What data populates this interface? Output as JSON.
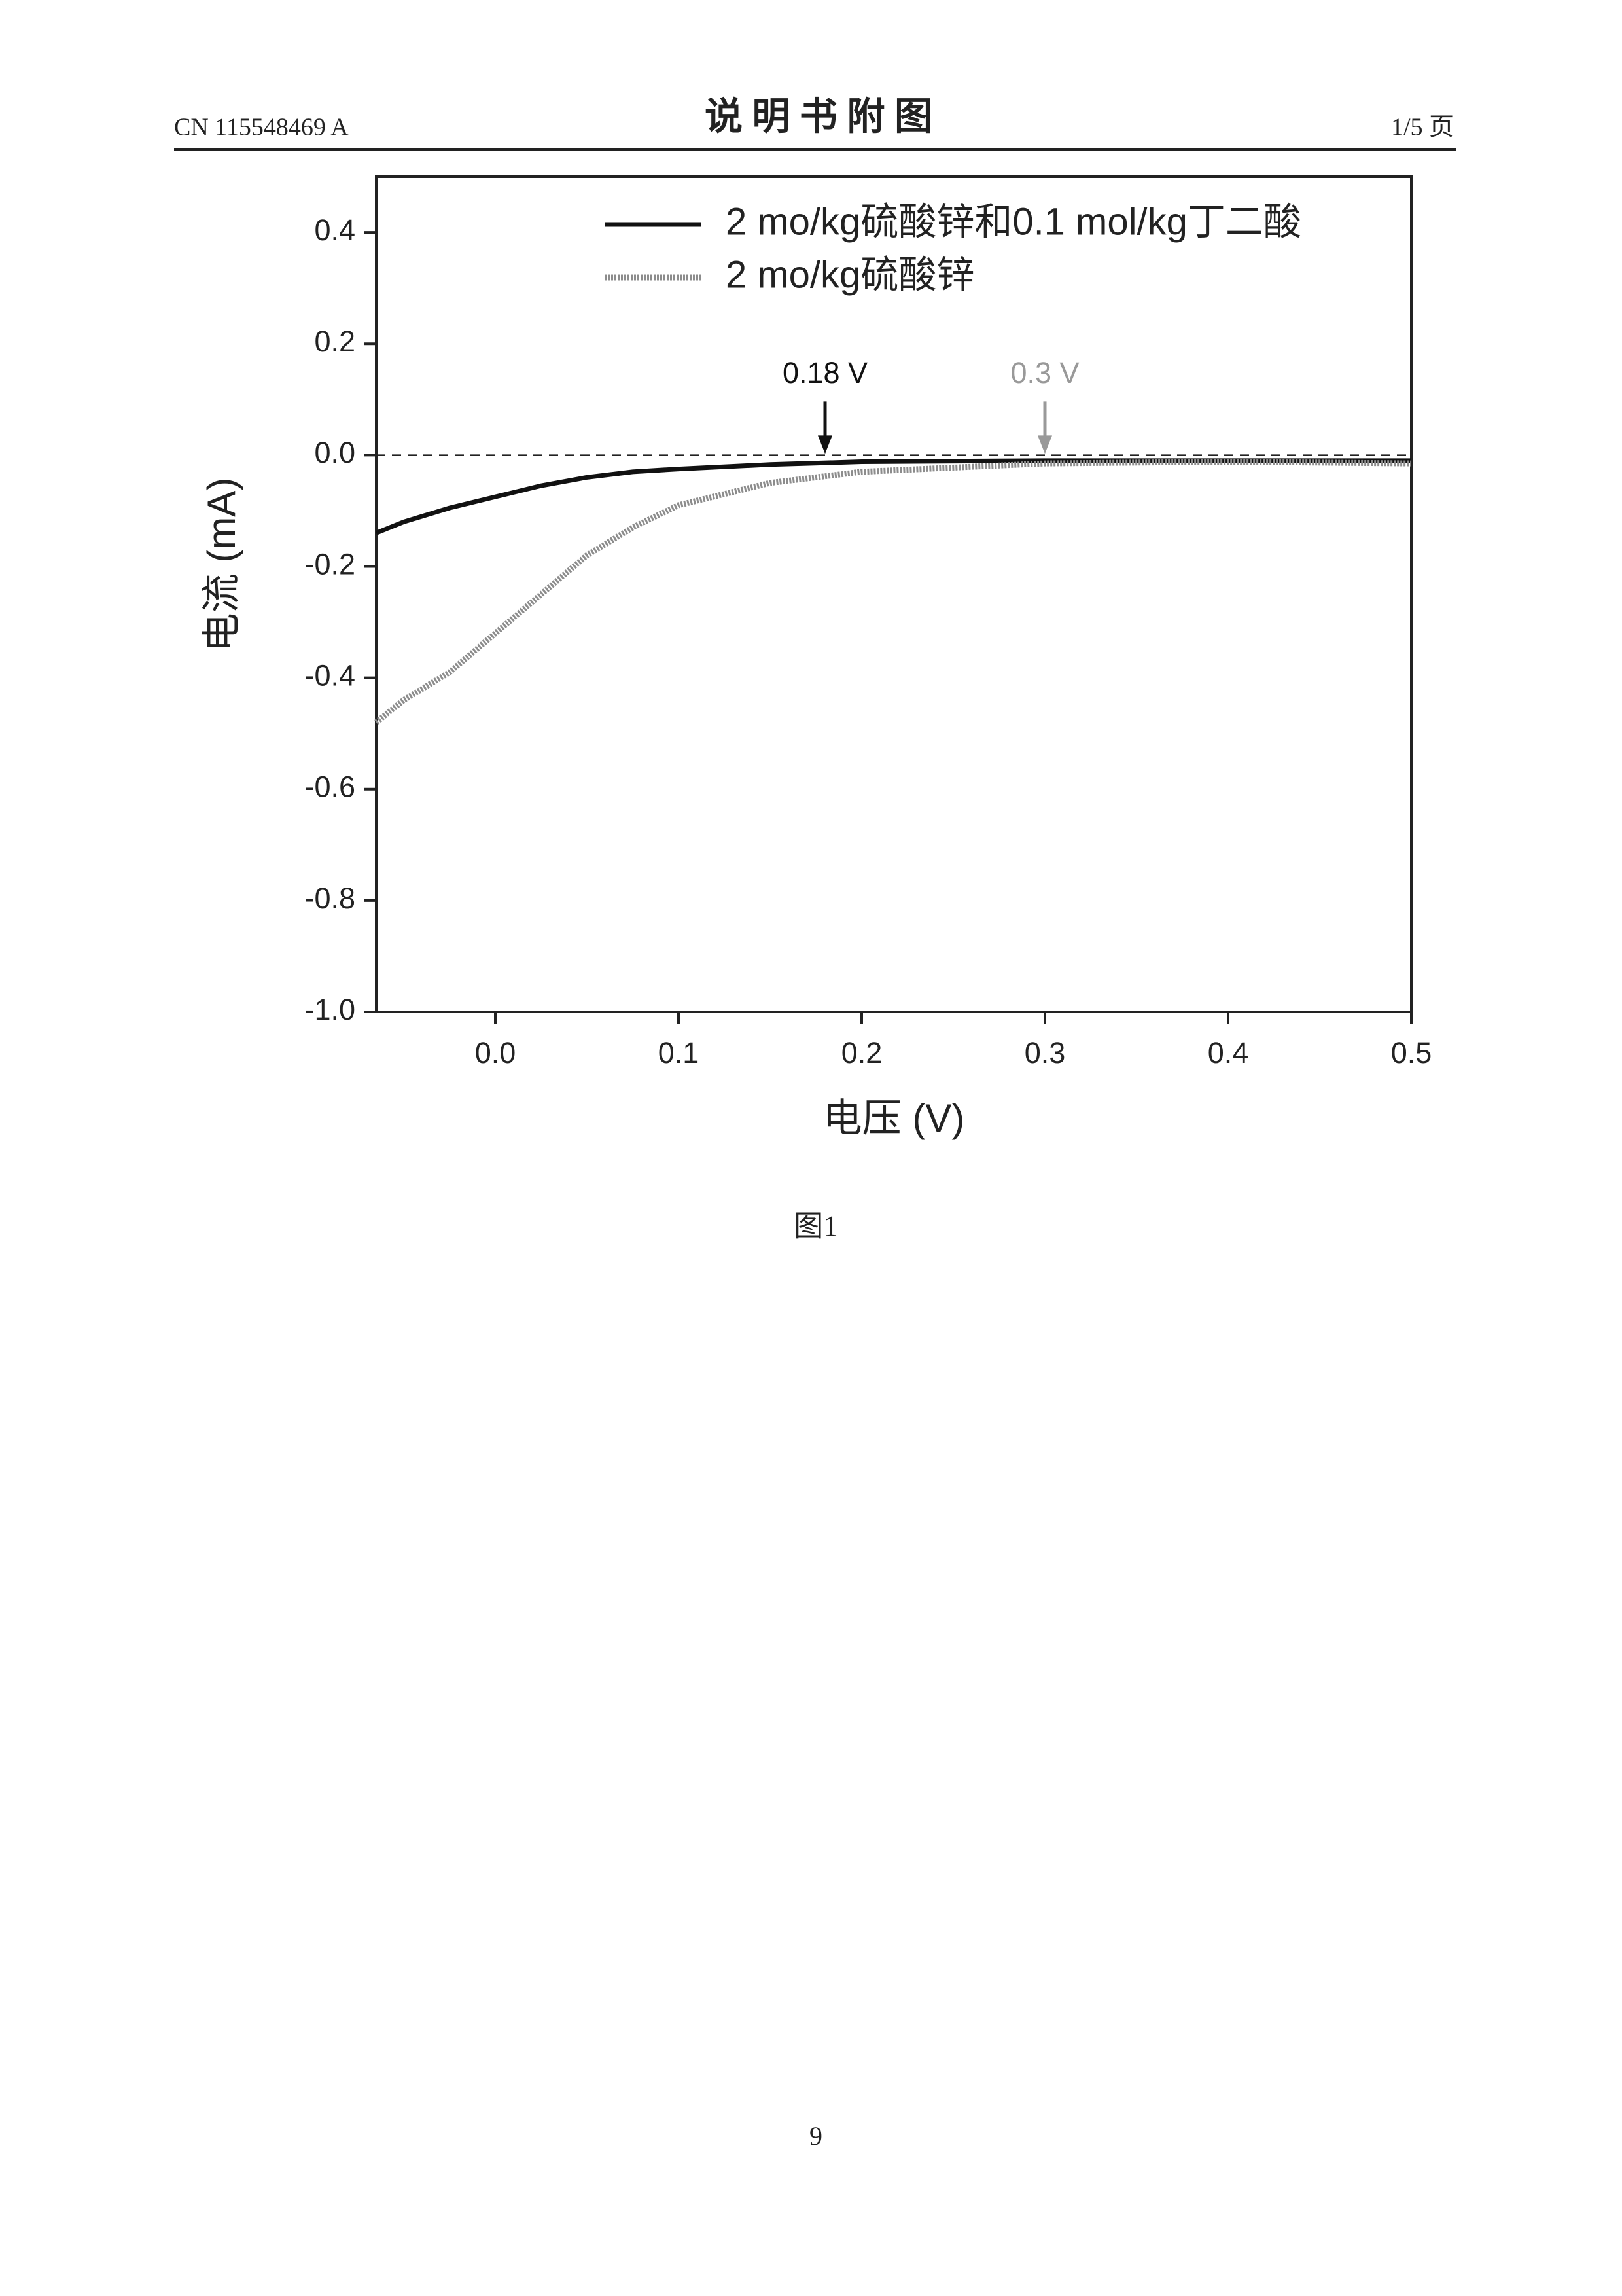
{
  "header": {
    "left": "CN 115548469 A",
    "title": "说 明 书 附 图",
    "right": "1/5 页"
  },
  "chart_data": {
    "type": "line",
    "xlabel": "电压 (V)",
    "ylabel": "电流 (mA)",
    "x": [
      -0.065,
      -0.05,
      -0.025,
      0,
      0.025,
      0.05,
      0.075,
      0.1,
      0.15,
      0.2,
      0.3,
      0.4,
      0.5
    ],
    "series": [
      {
        "name": "2 mo/kg硫酸锌和0.1 mol/kg丁二酸",
        "color": "#111111",
        "values": [
          -0.14,
          -0.12,
          -0.095,
          -0.075,
          -0.055,
          -0.04,
          -0.03,
          -0.025,
          -0.017,
          -0.012,
          -0.01,
          -0.01,
          -0.01
        ]
      },
      {
        "name": "2 mo/kg硫酸锌",
        "color": "#8c8c8c",
        "values": [
          -0.48,
          -0.44,
          -0.39,
          -0.32,
          -0.25,
          -0.18,
          -0.13,
          -0.09,
          -0.05,
          -0.03,
          -0.015,
          -0.012,
          -0.015
        ]
      }
    ],
    "xlim": [
      -0.065,
      0.5
    ],
    "xticks": [
      {
        "value": 0,
        "label": "0.0"
      },
      0.1,
      0.2,
      0.3,
      0.4,
      0.5
    ],
    "ylim": [
      -1.0,
      0.5
    ],
    "yticks": [
      {
        "value": -1,
        "label": "-1.0"
      },
      -0.8,
      -0.6,
      -0.4,
      -0.2,
      {
        "value": 0,
        "label": "0.0"
      },
      0.2,
      0.4
    ],
    "reference_line": {
      "y": 0,
      "style": "dashed"
    },
    "annotations": [
      {
        "text": "0.18 V",
        "x": 0.18,
        "y": 0,
        "color": "#111111"
      },
      {
        "text": "0.3 V",
        "x": 0.3,
        "y": 0,
        "color": "#999999"
      }
    ],
    "legend": "upper right",
    "grid": false
  },
  "caption": "图1",
  "page_number": "9"
}
